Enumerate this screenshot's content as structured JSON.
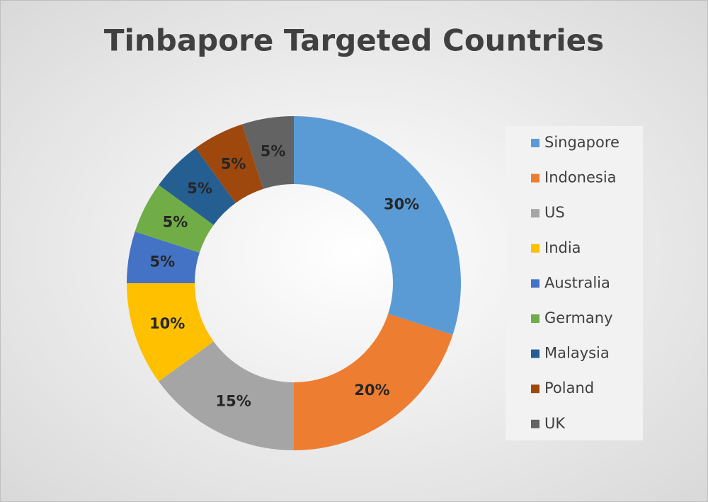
{
  "chart_data": {
    "type": "donut",
    "title": "Tinbapore Targeted Countries",
    "categories": [
      "Singapore",
      "Indonesia",
      "US",
      "India",
      "Australia",
      "Germany",
      "Malaysia",
      "Poland",
      "UK"
    ],
    "values": [
      30,
      20,
      15,
      10,
      5,
      5,
      5,
      5,
      5
    ],
    "value_labels": [
      "30%",
      "20%",
      "15%",
      "10%",
      "5%",
      "5%",
      "5%",
      "5%",
      "5%"
    ],
    "colors": [
      "#5b9bd5",
      "#ed7d31",
      "#a5a5a5",
      "#ffc000",
      "#4472c4",
      "#70ad47",
      "#255e91",
      "#9e480e",
      "#636363"
    ],
    "legend": "right"
  }
}
